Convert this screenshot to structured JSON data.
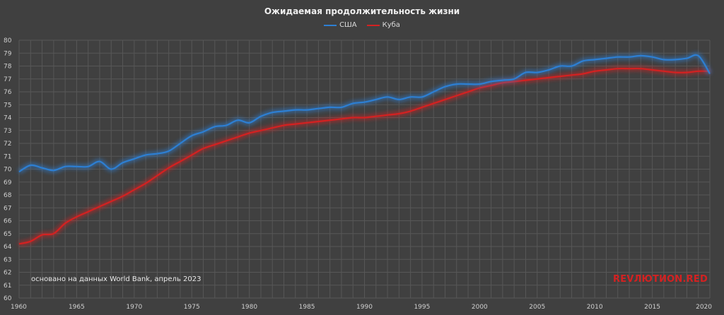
{
  "chart_data": {
    "type": "line",
    "title": "Ожидаемая продолжительность жизни",
    "xlim": [
      1960,
      2020
    ],
    "ylim": [
      60,
      80
    ],
    "x_ticks": [
      "1960",
      "1965",
      "1970",
      "1975",
      "1980",
      "1985",
      "1990",
      "1995",
      "2000",
      "2005",
      "2010",
      "2015",
      "2020"
    ],
    "y_ticks": [
      "60",
      "61",
      "62",
      "63",
      "64",
      "65",
      "66",
      "67",
      "68",
      "69",
      "70",
      "71",
      "72",
      "73",
      "74",
      "75",
      "76",
      "77",
      "78",
      "79",
      "80"
    ],
    "grid": true,
    "legend_position": "top-center",
    "x": [
      1960,
      1961,
      1962,
      1963,
      1964,
      1965,
      1966,
      1967,
      1968,
      1969,
      1970,
      1971,
      1972,
      1973,
      1974,
      1975,
      1976,
      1977,
      1978,
      1979,
      1980,
      1981,
      1982,
      1983,
      1984,
      1985,
      1986,
      1987,
      1988,
      1989,
      1990,
      1991,
      1992,
      1993,
      1994,
      1995,
      1996,
      1997,
      1998,
      1999,
      2000,
      2001,
      2002,
      2003,
      2004,
      2005,
      2006,
      2007,
      2008,
      2009,
      2010,
      2011,
      2012,
      2013,
      2014,
      2015,
      2016,
      2017,
      2018,
      2019,
      2020
    ],
    "series": [
      {
        "name": "США",
        "color": "#2d7fd3",
        "values": [
          69.8,
          70.3,
          70.1,
          69.9,
          70.2,
          70.2,
          70.2,
          70.6,
          70.0,
          70.5,
          70.8,
          71.1,
          71.2,
          71.4,
          72.0,
          72.6,
          72.9,
          73.3,
          73.4,
          73.8,
          73.6,
          74.1,
          74.4,
          74.5,
          74.6,
          74.6,
          74.7,
          74.8,
          74.8,
          75.1,
          75.2,
          75.4,
          75.6,
          75.4,
          75.6,
          75.6,
          76.0,
          76.4,
          76.6,
          76.6,
          76.6,
          76.8,
          76.9,
          77.0,
          77.5,
          77.5,
          77.7,
          78.0,
          78.0,
          78.4,
          78.5,
          78.6,
          78.7,
          78.7,
          78.8,
          78.7,
          78.5,
          78.5,
          78.6,
          78.8,
          77.4
        ]
      },
      {
        "name": "Куба",
        "color": "#d42121",
        "values": [
          64.2,
          64.4,
          64.9,
          65.0,
          65.8,
          66.3,
          66.7,
          67.1,
          67.5,
          67.9,
          68.4,
          68.9,
          69.5,
          70.1,
          70.6,
          71.1,
          71.6,
          71.9,
          72.2,
          72.5,
          72.8,
          73.0,
          73.2,
          73.4,
          73.5,
          73.6,
          73.7,
          73.8,
          73.9,
          74.0,
          74.0,
          74.1,
          74.2,
          74.3,
          74.5,
          74.8,
          75.1,
          75.4,
          75.7,
          76.0,
          76.3,
          76.5,
          76.7,
          76.8,
          76.9,
          77.0,
          77.1,
          77.2,
          77.3,
          77.4,
          77.6,
          77.7,
          77.8,
          77.8,
          77.8,
          77.7,
          77.6,
          77.5,
          77.5,
          77.6,
          77.6
        ]
      }
    ]
  },
  "footer": {
    "source_note": "основано на данных World Bank, апрель 2023",
    "brand_revo": "REV",
    "brand_gap": "ЛЮ",
    "brand_rest": "ТИON.RED",
    "brand_color": "#d42121"
  }
}
